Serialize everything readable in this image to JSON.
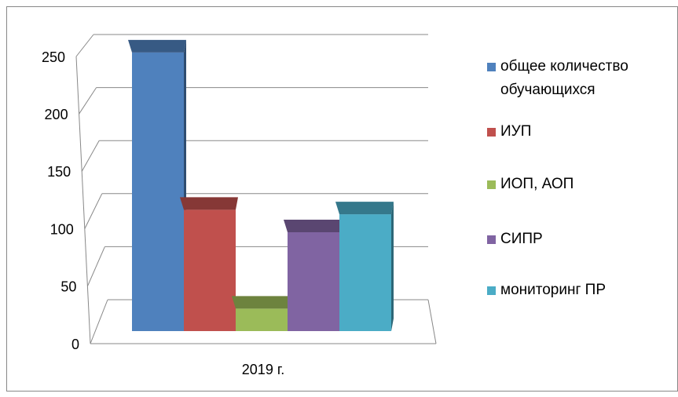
{
  "chart_data": {
    "type": "bar3d",
    "categories": [
      "2019 г."
    ],
    "series": [
      {
        "name": "общее количество обучающихся",
        "color": "#4f81bd",
        "values": [
          248
        ]
      },
      {
        "name": "ИУП",
        "color": "#c0504d",
        "values": [
          108
        ]
      },
      {
        "name": "ИОП, АОП",
        "color": "#9bbb59",
        "values": [
          20
        ]
      },
      {
        "name": "СИПР",
        "color": "#8064a2",
        "values": [
          88
        ]
      },
      {
        "name": "мониторинг ПР",
        "color": "#4bacc6",
        "values": [
          104
        ]
      }
    ],
    "ylim": [
      0,
      250
    ],
    "yticks": [
      0,
      50,
      100,
      150,
      200,
      250
    ],
    "grid": true,
    "legend": "right"
  }
}
